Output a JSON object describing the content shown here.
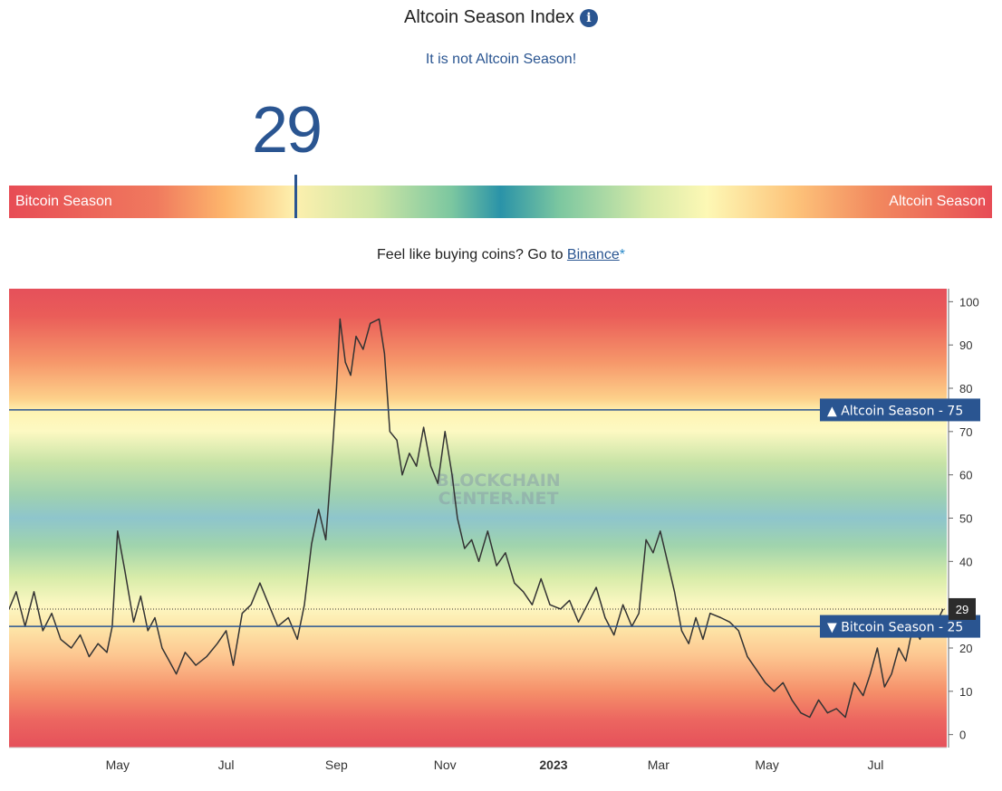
{
  "header": {
    "title": "Altcoin Season Index",
    "info_icon": "info-icon",
    "info_glyph": "i",
    "status_text": "It is not Altcoin Season!"
  },
  "gauge": {
    "value": "29",
    "left_label": "Bitcoin Season",
    "right_label": "Altcoin Season"
  },
  "promo": {
    "text": "Feel like buying coins? Go to ",
    "link_text": "Binance",
    "suffix": "*"
  },
  "chart_data": {
    "type": "line",
    "title": "",
    "xlabel": "",
    "ylabel": "",
    "ylim": [
      -3,
      103
    ],
    "yticks": [
      0,
      10,
      20,
      30,
      40,
      50,
      60,
      70,
      80,
      90,
      100
    ],
    "x_tick_labels": [
      "May",
      "Jul",
      "Sep",
      "Nov",
      "2023",
      "Mar",
      "May",
      "Jul"
    ],
    "x_tick_dates": [
      "2022-05-01",
      "2022-07-01",
      "2022-09-01",
      "2022-11-01",
      "2023-01-01",
      "2023-03-01",
      "2023-05-01",
      "2023-07-01"
    ],
    "xlim": [
      "2022-03-01",
      "2023-08-10"
    ],
    "thresholds": [
      {
        "label": "Altcoin Season",
        "value": 75,
        "arrow": "▲"
      },
      {
        "label": "Bitcoin Season",
        "value": 25,
        "arrow": "▼"
      }
    ],
    "current_value": 29,
    "watermark": [
      "BLOCKCHAIN",
      "CENTER.NET"
    ],
    "background_bands": "red at 0 and 100, orange, yellow, green, blue near 50",
    "series": [
      {
        "color": "#333333",
        "points": [
          [
            "2022-03-01",
            29
          ],
          [
            "2022-03-05",
            33
          ],
          [
            "2022-03-10",
            25
          ],
          [
            "2022-03-15",
            33
          ],
          [
            "2022-03-20",
            24
          ],
          [
            "2022-03-25",
            28
          ],
          [
            "2022-03-30",
            22
          ],
          [
            "2022-04-05",
            20
          ],
          [
            "2022-04-10",
            23
          ],
          [
            "2022-04-15",
            18
          ],
          [
            "2022-04-20",
            21
          ],
          [
            "2022-04-25",
            19
          ],
          [
            "2022-04-28",
            25
          ],
          [
            "2022-05-01",
            47
          ],
          [
            "2022-05-05",
            38
          ],
          [
            "2022-05-10",
            26
          ],
          [
            "2022-05-14",
            32
          ],
          [
            "2022-05-18",
            24
          ],
          [
            "2022-05-22",
            27
          ],
          [
            "2022-05-26",
            20
          ],
          [
            "2022-05-30",
            17
          ],
          [
            "2022-06-03",
            14
          ],
          [
            "2022-06-08",
            19
          ],
          [
            "2022-06-14",
            16
          ],
          [
            "2022-06-20",
            18
          ],
          [
            "2022-06-26",
            21
          ],
          [
            "2022-07-01",
            24
          ],
          [
            "2022-07-05",
            16
          ],
          [
            "2022-07-10",
            28
          ],
          [
            "2022-07-15",
            30
          ],
          [
            "2022-07-20",
            35
          ],
          [
            "2022-07-25",
            30
          ],
          [
            "2022-07-30",
            25
          ],
          [
            "2022-08-05",
            27
          ],
          [
            "2022-08-10",
            22
          ],
          [
            "2022-08-14",
            30
          ],
          [
            "2022-08-18",
            44
          ],
          [
            "2022-08-22",
            52
          ],
          [
            "2022-08-26",
            45
          ],
          [
            "2022-08-30",
            67
          ],
          [
            "2022-09-01",
            80
          ],
          [
            "2022-09-03",
            96
          ],
          [
            "2022-09-06",
            86
          ],
          [
            "2022-09-09",
            83
          ],
          [
            "2022-09-12",
            92
          ],
          [
            "2022-09-16",
            89
          ],
          [
            "2022-09-20",
            95
          ],
          [
            "2022-09-25",
            96
          ],
          [
            "2022-09-28",
            88
          ],
          [
            "2022-10-01",
            70
          ],
          [
            "2022-10-05",
            68
          ],
          [
            "2022-10-08",
            60
          ],
          [
            "2022-10-12",
            65
          ],
          [
            "2022-10-16",
            62
          ],
          [
            "2022-10-20",
            71
          ],
          [
            "2022-10-24",
            62
          ],
          [
            "2022-10-28",
            58
          ],
          [
            "2022-11-01",
            70
          ],
          [
            "2022-11-05",
            60
          ],
          [
            "2022-11-08",
            50
          ],
          [
            "2022-11-12",
            43
          ],
          [
            "2022-11-16",
            45
          ],
          [
            "2022-11-20",
            40
          ],
          [
            "2022-11-25",
            47
          ],
          [
            "2022-11-30",
            39
          ],
          [
            "2022-12-05",
            42
          ],
          [
            "2022-12-10",
            35
          ],
          [
            "2022-12-15",
            33
          ],
          [
            "2022-12-20",
            30
          ],
          [
            "2022-12-25",
            36
          ],
          [
            "2022-12-30",
            30
          ],
          [
            "2023-01-05",
            29
          ],
          [
            "2023-01-10",
            31
          ],
          [
            "2023-01-15",
            26
          ],
          [
            "2023-01-20",
            30
          ],
          [
            "2023-01-25",
            34
          ],
          [
            "2023-01-30",
            27
          ],
          [
            "2023-02-04",
            23
          ],
          [
            "2023-02-09",
            30
          ],
          [
            "2023-02-14",
            25
          ],
          [
            "2023-02-18",
            28
          ],
          [
            "2023-02-22",
            45
          ],
          [
            "2023-02-26",
            42
          ],
          [
            "2023-03-02",
            47
          ],
          [
            "2023-03-06",
            40
          ],
          [
            "2023-03-10",
            33
          ],
          [
            "2023-03-14",
            24
          ],
          [
            "2023-03-18",
            21
          ],
          [
            "2023-03-22",
            27
          ],
          [
            "2023-03-26",
            22
          ],
          [
            "2023-03-30",
            28
          ],
          [
            "2023-04-05",
            27
          ],
          [
            "2023-04-10",
            26
          ],
          [
            "2023-04-15",
            24
          ],
          [
            "2023-04-20",
            18
          ],
          [
            "2023-04-25",
            15
          ],
          [
            "2023-04-30",
            12
          ],
          [
            "2023-05-05",
            10
          ],
          [
            "2023-05-10",
            12
          ],
          [
            "2023-05-15",
            8
          ],
          [
            "2023-05-20",
            5
          ],
          [
            "2023-05-25",
            4
          ],
          [
            "2023-05-30",
            8
          ],
          [
            "2023-06-04",
            5
          ],
          [
            "2023-06-09",
            6
          ],
          [
            "2023-06-14",
            4
          ],
          [
            "2023-06-19",
            12
          ],
          [
            "2023-06-24",
            9
          ],
          [
            "2023-06-28",
            14
          ],
          [
            "2023-07-02",
            20
          ],
          [
            "2023-07-06",
            11
          ],
          [
            "2023-07-10",
            14
          ],
          [
            "2023-07-14",
            20
          ],
          [
            "2023-07-18",
            17
          ],
          [
            "2023-07-22",
            25
          ],
          [
            "2023-07-26",
            22
          ],
          [
            "2023-07-30",
            27
          ],
          [
            "2023-08-03",
            25
          ],
          [
            "2023-08-08",
            29
          ]
        ]
      }
    ]
  }
}
